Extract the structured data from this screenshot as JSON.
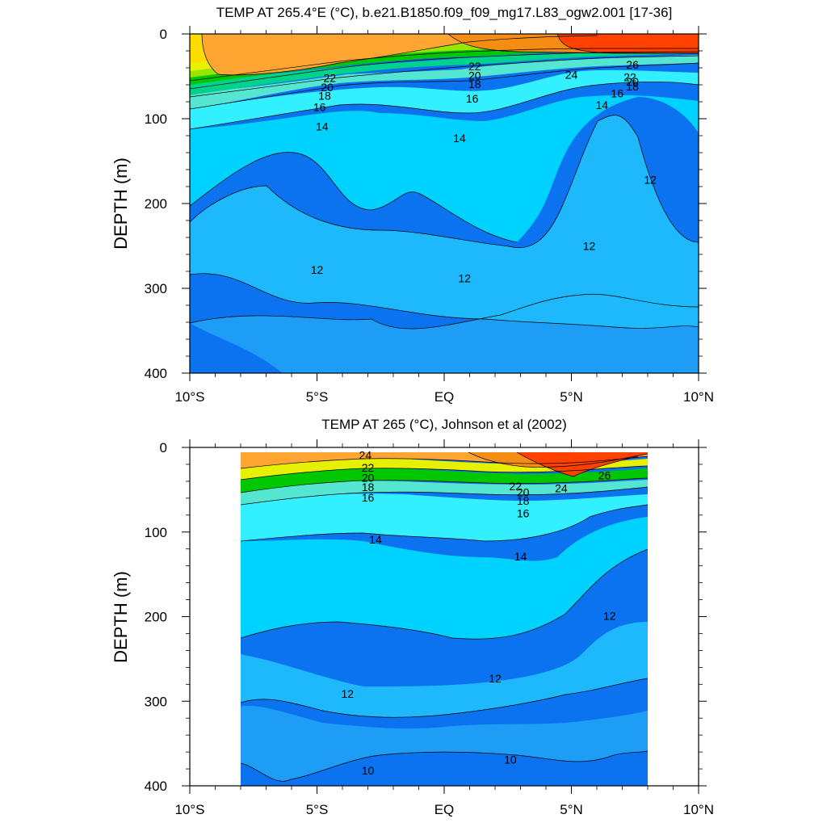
{
  "chart_data": [
    {
      "type": "heatmap",
      "title": "TEMP AT 265.4°E (°C), b.e21.B1850.f09_f09_mg17.L83_ogw2.001 [17-36]",
      "ylabel": "DEPTH (m)",
      "xlabel": "",
      "x_range": [
        -10,
        10
      ],
      "y_range": [
        0,
        400
      ],
      "y_reversed": true,
      "x_ticks": [
        -10,
        -5,
        0,
        5,
        10
      ],
      "x_tick_labels": [
        "10°S",
        "5°S",
        "EQ",
        "5°N",
        "10°N"
      ],
      "y_ticks": [
        0,
        100,
        200,
        300,
        400
      ],
      "y_tick_labels": [
        "0",
        "100",
        "200",
        "300",
        "400"
      ],
      "data_extent_lat": [
        -10,
        10
      ],
      "contour_levels": [
        10,
        11,
        12,
        13,
        14,
        15,
        16,
        17,
        18,
        19,
        20,
        21,
        22,
        23,
        24,
        25,
        26
      ],
      "contour_labels": [
        {
          "text": "22",
          "lat": -4.5,
          "depth": 52
        },
        {
          "text": "20",
          "lat": -4.6,
          "depth": 63
        },
        {
          "text": "18",
          "lat": -4.7,
          "depth": 73
        },
        {
          "text": "16",
          "lat": -4.9,
          "depth": 86
        },
        {
          "text": "14",
          "lat": -4.8,
          "depth": 109
        },
        {
          "text": "22",
          "lat": 1.2,
          "depth": 38
        },
        {
          "text": "20",
          "lat": 1.2,
          "depth": 49
        },
        {
          "text": "18",
          "lat": 1.2,
          "depth": 59
        },
        {
          "text": "16",
          "lat": 1.1,
          "depth": 76
        },
        {
          "text": "14",
          "lat": 0.6,
          "depth": 123
        },
        {
          "text": "24",
          "lat": 5.0,
          "depth": 48
        },
        {
          "text": "26",
          "lat": 7.4,
          "depth": 36
        },
        {
          "text": "22",
          "lat": 7.3,
          "depth": 51
        },
        {
          "text": "20",
          "lat": 7.4,
          "depth": 56
        },
        {
          "text": "18",
          "lat": 7.4,
          "depth": 62
        },
        {
          "text": "16",
          "lat": 6.8,
          "depth": 70
        },
        {
          "text": "14",
          "lat": 6.2,
          "depth": 84
        },
        {
          "text": "12",
          "lat": 8.1,
          "depth": 172
        },
        {
          "text": "12",
          "lat": 5.7,
          "depth": 250
        },
        {
          "text": "12",
          "lat": 0.8,
          "depth": 288
        },
        {
          "text": "12",
          "lat": -5.0,
          "depth": 278
        }
      ],
      "colorbar": false,
      "legend": "none",
      "grid": false
    },
    {
      "type": "heatmap",
      "title": "TEMP AT 265 (°C), Johnson et al (2002)",
      "ylabel": "DEPTH (m)",
      "xlabel": "",
      "x_range": [
        -10,
        10
      ],
      "y_range": [
        0,
        400
      ],
      "y_reversed": true,
      "x_ticks": [
        -10,
        -5,
        0,
        5,
        10
      ],
      "x_tick_labels": [
        "10°S",
        "5°S",
        "EQ",
        "5°N",
        "10°N"
      ],
      "y_ticks": [
        0,
        100,
        200,
        300,
        400
      ],
      "y_tick_labels": [
        "0",
        "100",
        "200",
        "300",
        "400"
      ],
      "data_extent_lat": [
        -8,
        8
      ],
      "contour_levels": [
        10,
        11,
        12,
        13,
        14,
        15,
        16,
        17,
        18,
        19,
        20,
        21,
        22,
        23,
        24,
        25,
        26
      ],
      "contour_labels": [
        {
          "text": "24",
          "lat": -3.1,
          "depth": 9
        },
        {
          "text": "22",
          "lat": -3.0,
          "depth": 24
        },
        {
          "text": "20",
          "lat": -3.0,
          "depth": 36
        },
        {
          "text": "18",
          "lat": -3.0,
          "depth": 47
        },
        {
          "text": "16",
          "lat": -3.0,
          "depth": 59
        },
        {
          "text": "14",
          "lat": -2.7,
          "depth": 109
        },
        {
          "text": "22",
          "lat": 2.8,
          "depth": 46
        },
        {
          "text": "20",
          "lat": 3.1,
          "depth": 53
        },
        {
          "text": "18",
          "lat": 3.1,
          "depth": 63
        },
        {
          "text": "16",
          "lat": 3.1,
          "depth": 78
        },
        {
          "text": "24",
          "lat": 4.6,
          "depth": 48
        },
        {
          "text": "26",
          "lat": 6.3,
          "depth": 33
        },
        {
          "text": "14",
          "lat": 3.0,
          "depth": 129
        },
        {
          "text": "12",
          "lat": 6.5,
          "depth": 199
        },
        {
          "text": "12",
          "lat": 2.0,
          "depth": 273
        },
        {
          "text": "12",
          "lat": -3.8,
          "depth": 291
        },
        {
          "text": "10",
          "lat": 2.6,
          "depth": 369
        },
        {
          "text": "10",
          "lat": -3.0,
          "depth": 382
        }
      ],
      "colorbar": false,
      "legend": "none",
      "grid": false
    }
  ]
}
